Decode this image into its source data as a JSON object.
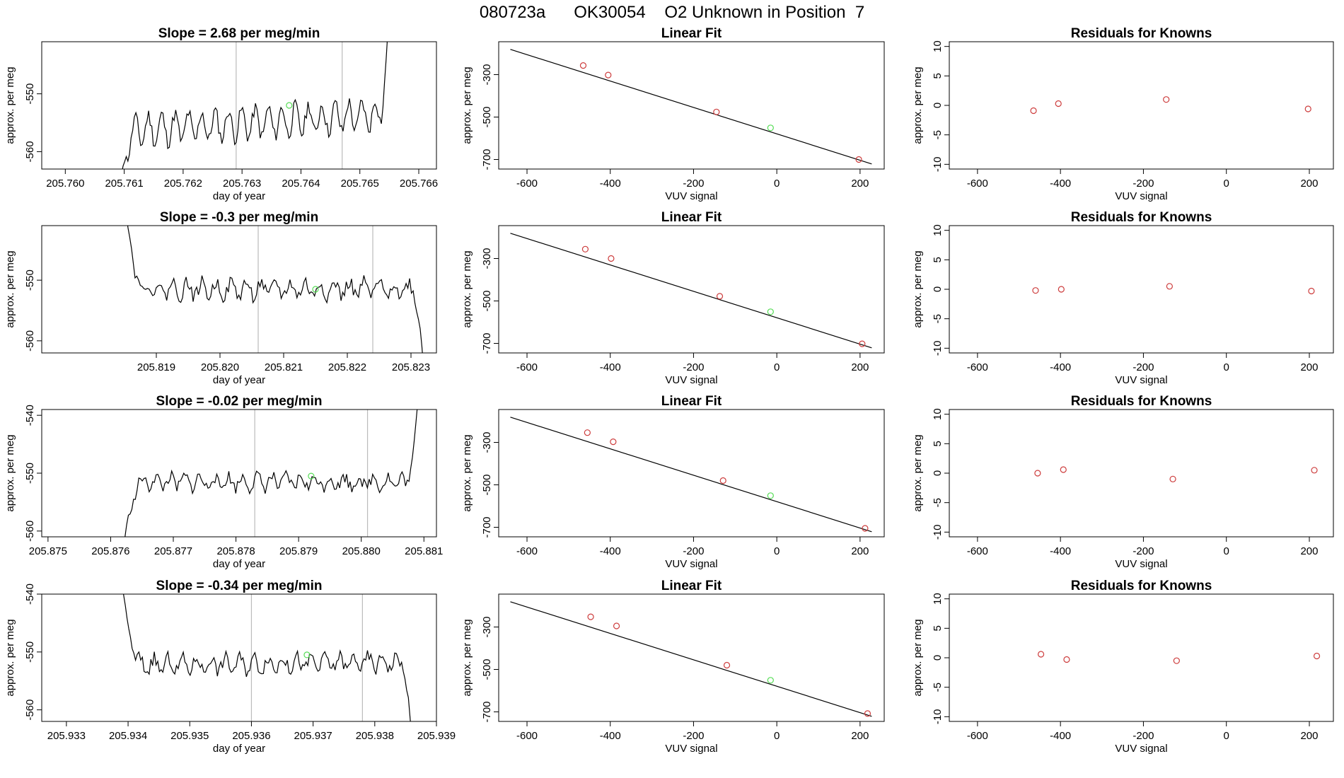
{
  "figure": {
    "title": "080723a      OK30054    O2 Unknown in Position  7"
  },
  "colors": {
    "line": "#000000",
    "known_point": "#cd3c3c",
    "unknown_point": "#55dd55",
    "vline": "#bbbbbb"
  },
  "chart_data": [
    {
      "type": "line",
      "panel": "time-series",
      "row": 0,
      "title": "Slope =  2.68  per meg/min",
      "xlabel": "day of year",
      "ylabel": "approx. per meg",
      "xlim": [
        205.7596,
        205.7663
      ],
      "ylim": [
        -563,
        -541
      ],
      "xticks": [
        205.76,
        205.761,
        205.762,
        205.763,
        205.764,
        205.765,
        205.766
      ],
      "xtick_labels": [
        "205.760",
        "205.761",
        "205.762",
        "205.763",
        "205.764",
        "205.765",
        "205.766"
      ],
      "yticks": [
        -560,
        -550
      ],
      "ytick_labels": [
        "-560",
        "-550"
      ],
      "vlines": [
        205.7629,
        205.7647
      ],
      "unknown_point": [
        205.7638,
        -552
      ],
      "series": {
        "start": 205.7609,
        "end": 205.7655,
        "base": -555,
        "amp": 2.5,
        "drift": 3,
        "noise": 1.2,
        "head": -568,
        "tail": -535,
        "seed": 11
      }
    },
    {
      "type": "scatter",
      "panel": "linear-fit",
      "row": 0,
      "title": "Linear Fit",
      "xlabel": "VUV signal",
      "ylabel": "approx. per meg",
      "xlim": [
        -668,
        258
      ],
      "ylim": [
        -745,
        -145
      ],
      "xticks": [
        -600,
        -400,
        -200,
        0,
        200
      ],
      "xtick_labels": [
        "-600",
        "-400",
        "-200",
        "0",
        "200"
      ],
      "yticks": [
        -700,
        -500,
        -300
      ],
      "ytick_labels": [
        "-700",
        "-500",
        "-300"
      ],
      "fit_line": {
        "x": [
          -640,
          228
        ],
        "y": [
          -181,
          -721
        ]
      },
      "knowns": {
        "x": [
          -465,
          -405,
          -145,
          197
        ],
        "y": [
          -257,
          -302,
          -476,
          -700
        ]
      },
      "unknown": {
        "x": [
          -15
        ],
        "y": [
          -551
        ]
      }
    },
    {
      "type": "scatter",
      "panel": "residuals",
      "row": 0,
      "title": "Residuals for Knowns",
      "xlabel": "VUV signal",
      "ylabel": "approx. per meg",
      "xlim": [
        -668,
        258
      ],
      "ylim": [
        -10.8,
        10.8
      ],
      "xticks": [
        -600,
        -400,
        -200,
        0,
        200
      ],
      "xtick_labels": [
        "-600",
        "-400",
        "-200",
        "0",
        "200"
      ],
      "yticks": [
        -10,
        -5,
        0,
        5,
        10
      ],
      "ytick_labels": [
        "-10",
        "-5",
        "0",
        "5",
        "10"
      ],
      "points": {
        "x": [
          -465,
          -405,
          -145,
          197
        ],
        "y": [
          -0.9,
          0.3,
          1.0,
          -0.6
        ]
      }
    },
    {
      "type": "line",
      "panel": "time-series",
      "row": 1,
      "title": "Slope =  -0.3  per meg/min",
      "xlabel": "day of year",
      "ylabel": "approx. per meg",
      "xlim": [
        205.8172,
        205.8234
      ],
      "ylim": [
        -562,
        -541
      ],
      "xticks": [
        205.819,
        205.82,
        205.821,
        205.822,
        205.823
      ],
      "xtick_labels": [
        "205.819",
        "205.820",
        "205.821",
        "205.822",
        "205.823"
      ],
      "yticks": [
        -560,
        -550
      ],
      "ytick_labels": [
        "-560",
        "-550"
      ],
      "vlines": [
        205.8206,
        205.8224
      ],
      "unknown_point": [
        205.8215,
        -551.5
      ],
      "series": {
        "start": 205.8185,
        "end": 205.8232,
        "base": -551.5,
        "amp": 1.2,
        "drift": 0,
        "noise": 1.1,
        "head": -537,
        "tail": -565,
        "seed": 22
      }
    },
    {
      "type": "scatter",
      "panel": "linear-fit",
      "row": 1,
      "title": "Linear Fit",
      "xlabel": "VUV signal",
      "ylabel": "approx. per meg",
      "xlim": [
        -668,
        258
      ],
      "ylim": [
        -745,
        -145
      ],
      "xticks": [
        -600,
        -400,
        -200,
        0,
        200
      ],
      "xtick_labels": [
        "-600",
        "-400",
        "-200",
        "0",
        "200"
      ],
      "yticks": [
        -700,
        -500,
        -300
      ],
      "ytick_labels": [
        "-700",
        "-500",
        "-300"
      ],
      "fit_line": {
        "x": [
          -640,
          228
        ],
        "y": [
          -181,
          -721
        ]
      },
      "knowns": {
        "x": [
          -460,
          -398,
          -137,
          205
        ],
        "y": [
          -256,
          -300,
          -478,
          -702
        ]
      },
      "unknown": {
        "x": [
          -15
        ],
        "y": [
          -551
        ]
      }
    },
    {
      "type": "scatter",
      "panel": "residuals",
      "row": 1,
      "title": "Residuals for Knowns",
      "xlabel": "VUV signal",
      "ylabel": "approx. per meg",
      "xlim": [
        -668,
        258
      ],
      "ylim": [
        -10.8,
        10.8
      ],
      "xticks": [
        -600,
        -400,
        -200,
        0,
        200
      ],
      "xtick_labels": [
        "-600",
        "-400",
        "-200",
        "0",
        "200"
      ],
      "yticks": [
        -10,
        -5,
        0,
        5,
        10
      ],
      "ytick_labels": [
        "-10",
        "-5",
        "0",
        "5",
        "10"
      ],
      "points": {
        "x": [
          -460,
          -398,
          -137,
          205
        ],
        "y": [
          -0.2,
          0.0,
          0.5,
          -0.3
        ]
      }
    },
    {
      "type": "line",
      "panel": "time-series",
      "row": 2,
      "title": "Slope =  -0.02  per meg/min",
      "xlabel": "day of year",
      "ylabel": "approx. per meg",
      "xlim": [
        205.8749,
        205.8812
      ],
      "ylim": [
        -561,
        -539
      ],
      "xticks": [
        205.875,
        205.876,
        205.877,
        205.878,
        205.879,
        205.88,
        205.881
      ],
      "xtick_labels": [
        "205.875",
        "205.876",
        "205.877",
        "205.878",
        "205.879",
        "205.880",
        "205.881"
      ],
      "yticks": [
        -560,
        -550,
        -540
      ],
      "ytick_labels": [
        "-560",
        "-550",
        "-540"
      ],
      "vlines": [
        205.8783,
        205.8801
      ],
      "unknown_point": [
        205.8792,
        -550.5
      ],
      "series": {
        "start": 205.8762,
        "end": 205.8809,
        "base": -551.5,
        "amp": 1.0,
        "drift": 0,
        "noise": 1.1,
        "head": -563,
        "tail": -538,
        "seed": 33
      }
    },
    {
      "type": "scatter",
      "panel": "linear-fit",
      "row": 2,
      "title": "Linear Fit",
      "xlabel": "VUV signal",
      "ylabel": "approx. per meg",
      "xlim": [
        -668,
        258
      ],
      "ylim": [
        -745,
        -145
      ],
      "xticks": [
        -600,
        -400,
        -200,
        0,
        200
      ],
      "xtick_labels": [
        "-600",
        "-400",
        "-200",
        "0",
        "200"
      ],
      "yticks": [
        -700,
        -500,
        -300
      ],
      "ytick_labels": [
        "-700",
        "-500",
        "-300"
      ],
      "fit_line": {
        "x": [
          -640,
          228
        ],
        "y": [
          -181,
          -721
        ]
      },
      "knowns": {
        "x": [
          -455,
          -393,
          -129,
          212
        ],
        "y": [
          -254,
          -297,
          -480,
          -705
        ]
      },
      "unknown": {
        "x": [
          -15
        ],
        "y": [
          -551
        ]
      }
    },
    {
      "type": "scatter",
      "panel": "residuals",
      "row": 2,
      "title": "Residuals for Knowns",
      "xlabel": "VUV signal",
      "ylabel": "approx. per meg",
      "xlim": [
        -668,
        258
      ],
      "ylim": [
        -10.8,
        10.8
      ],
      "xticks": [
        -600,
        -400,
        -200,
        0,
        200
      ],
      "xtick_labels": [
        "-600",
        "-400",
        "-200",
        "0",
        "200"
      ],
      "yticks": [
        -10,
        -5,
        0,
        5,
        10
      ],
      "ytick_labels": [
        "-10",
        "-5",
        "0",
        "5",
        "10"
      ],
      "points": {
        "x": [
          -455,
          -393,
          -129,
          212
        ],
        "y": [
          0.0,
          0.6,
          -1.0,
          0.5
        ]
      }
    },
    {
      "type": "line",
      "panel": "time-series",
      "row": 3,
      "title": "Slope =  -0.34  per meg/min",
      "xlabel": "day of year",
      "ylabel": "approx. per meg",
      "xlim": [
        205.9326,
        205.939
      ],
      "ylim": [
        -562,
        -540
      ],
      "xticks": [
        205.933,
        205.934,
        205.935,
        205.936,
        205.937,
        205.938,
        205.939
      ],
      "xtick_labels": [
        "205.933",
        "205.934",
        "205.935",
        "205.936",
        "205.937",
        "205.938",
        "205.939"
      ],
      "yticks": [
        -560,
        -550,
        -540
      ],
      "ytick_labels": [
        "-560",
        "-550",
        "-540"
      ],
      "vlines": [
        205.936,
        205.9378
      ],
      "unknown_point": [
        205.9369,
        -550.5
      ],
      "series": {
        "start": 205.9339,
        "end": 205.9386,
        "base": -552,
        "amp": 1.2,
        "drift": 0.6,
        "noise": 1.1,
        "head": -538,
        "tail": -565,
        "seed": 44
      }
    },
    {
      "type": "scatter",
      "panel": "linear-fit",
      "row": 3,
      "title": "Linear Fit",
      "xlabel": "VUV signal",
      "ylabel": "approx. per meg",
      "xlim": [
        -668,
        258
      ],
      "ylim": [
        -745,
        -145
      ],
      "xticks": [
        -600,
        -400,
        -200,
        0,
        200
      ],
      "xtick_labels": [
        "-600",
        "-400",
        "-200",
        "0",
        "200"
      ],
      "yticks": [
        -700,
        -500,
        -300
      ],
      "ytick_labels": [
        "-700",
        "-500",
        "-300"
      ],
      "fit_line": {
        "x": [
          -640,
          228
        ],
        "y": [
          -181,
          -721
        ]
      },
      "knowns": {
        "x": [
          -447,
          -385,
          -120,
          218
        ],
        "y": [
          -252,
          -295,
          -480,
          -708
        ]
      },
      "unknown": {
        "x": [
          -15
        ],
        "y": [
          -551
        ]
      }
    },
    {
      "type": "scatter",
      "panel": "residuals",
      "row": 3,
      "title": "Residuals for Knowns",
      "xlabel": "VUV signal",
      "ylabel": "approx. per meg",
      "xlim": [
        -668,
        258
      ],
      "ylim": [
        -10.8,
        10.8
      ],
      "xticks": [
        -600,
        -400,
        -200,
        0,
        200
      ],
      "xtick_labels": [
        "-600",
        "-400",
        "-200",
        "0",
        "200"
      ],
      "yticks": [
        -10,
        -5,
        0,
        5,
        10
      ],
      "ytick_labels": [
        "-10",
        "-5",
        "0",
        "5",
        "10"
      ],
      "points": {
        "x": [
          -447,
          -385,
          -120,
          218
        ],
        "y": [
          0.6,
          -0.3,
          -0.5,
          0.3
        ]
      }
    }
  ]
}
